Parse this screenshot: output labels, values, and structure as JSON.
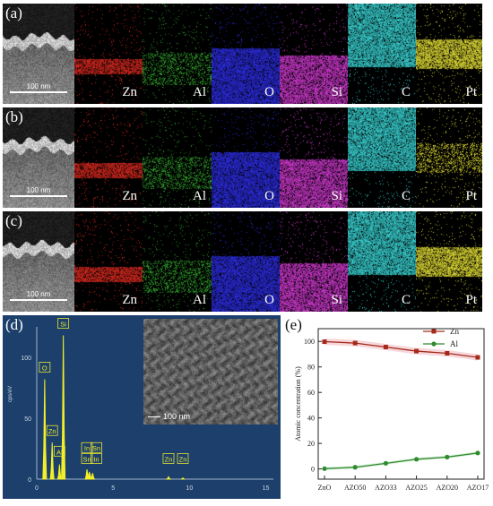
{
  "panel_labels": {
    "a": "(a)",
    "b": "(b)",
    "c": "(c)",
    "d": "(d)",
    "e": "(e)"
  },
  "maps": {
    "elements": [
      "Zn",
      "Al",
      "O",
      "Si",
      "C",
      "Pt"
    ],
    "scale_bar": "100 nm",
    "colors": {
      "Zn": "#e02a20",
      "Al": "#36b030",
      "O": "#2d2ee8",
      "Si": "#d43ad4",
      "C": "#3ad6d6",
      "Pt": "#e8e436"
    }
  },
  "eds": {
    "y_axis_label": "cps/eV",
    "y_ticks": [
      "100",
      "50",
      "0"
    ],
    "x_ticks": [
      "0",
      "5",
      "10",
      "15"
    ],
    "inset_scale": "100 nm",
    "peaks": [
      {
        "label": "O",
        "energy": 0.52,
        "height": 82
      },
      {
        "label": "Zn",
        "energy": 1.01,
        "height": 30
      },
      {
        "label": "Al",
        "energy": 1.49,
        "height": 12
      },
      {
        "label": "Si",
        "energy": 1.74,
        "height": 118
      },
      {
        "label": "In",
        "energy": 3.29,
        "height": 8
      },
      {
        "label": "Sn",
        "energy": 3.44,
        "height": 6
      },
      {
        "label": "Sn",
        "energy": 3.66,
        "height": 5
      },
      {
        "label": "In",
        "energy": 3.49,
        "height": 4
      },
      {
        "label": "Zn",
        "energy": 8.63,
        "height": 2
      },
      {
        "label": "Zn",
        "energy": 9.57,
        "height": 1
      }
    ],
    "peak_labels": [
      {
        "text": "Si",
        "energy": 1.74,
        "height": 118
      },
      {
        "text": "O",
        "energy": 0.52,
        "height": 82
      },
      {
        "text": "Zn",
        "energy": 1.01,
        "height": 30
      },
      {
        "text": "Al",
        "energy": 1.49,
        "height": 13
      },
      {
        "text": "In",
        "energy": 3.29,
        "height": 16
      },
      {
        "text": "Sn",
        "energy": 3.9,
        "height": 16
      },
      {
        "text": "Sn",
        "energy": 3.29,
        "height": 7
      },
      {
        "text": "In",
        "energy": 3.9,
        "height": 7
      },
      {
        "text": "Zn",
        "energy": 8.63,
        "height": 7
      },
      {
        "text": "Zn",
        "energy": 9.57,
        "height": 7
      }
    ]
  },
  "chart_data": {
    "type": "line",
    "ylabel": "Atomic concentration (%)",
    "xlabel": "",
    "categories": [
      "ZnO",
      "AZO50",
      "AZO33",
      "AZO25",
      "AZO20",
      "AZO17"
    ],
    "y_ticks": [
      "0",
      "20",
      "40",
      "60",
      "80",
      "100"
    ],
    "ylim": [
      -8,
      110
    ],
    "legend_position": "top-right",
    "series": [
      {
        "name": "Zn",
        "color": "#a52a1a",
        "marker": "square",
        "values": [
          99.8,
          98.7,
          95.6,
          92.4,
          90.7,
          87.5
        ]
      },
      {
        "name": "Al",
        "color": "#2e8b2e",
        "marker": "circle",
        "values": [
          0.2,
          1.3,
          4.4,
          7.6,
          9.3,
          12.5
        ]
      }
    ]
  }
}
